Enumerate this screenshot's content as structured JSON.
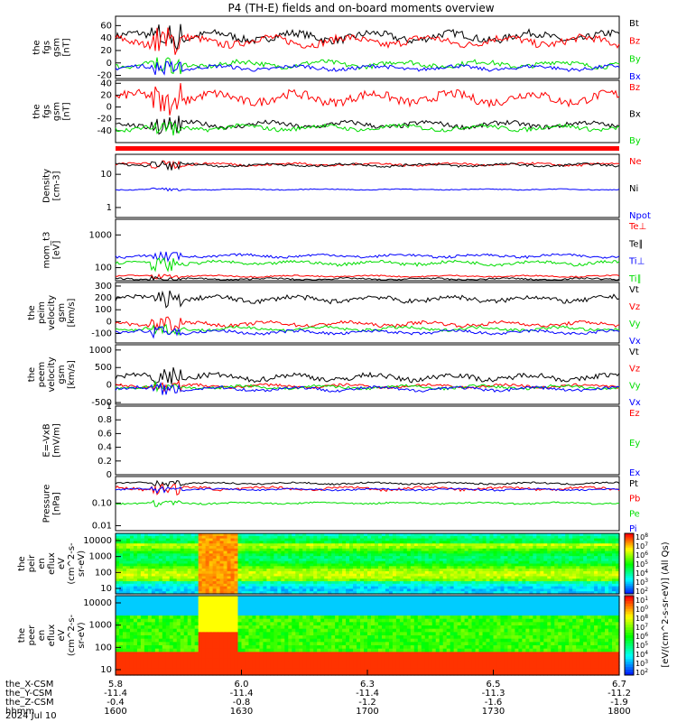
{
  "title": "P4 (TH-E) fields and on-board moments overview",
  "chart_data": {
    "type": "line",
    "panels": [
      {
        "id": "fgs_gsm",
        "ylabel": [
          "the",
          "fgs",
          "gsm",
          "[nT]"
        ],
        "ylim": [
          -25,
          75
        ],
        "yticks": [
          60,
          40,
          20,
          0,
          -20
        ],
        "series": [
          {
            "name": "Bt",
            "color": "#000000",
            "base": 42,
            "amp": 12
          },
          {
            "name": "Bz",
            "color": "#ff0000",
            "base": 35,
            "amp": 12
          },
          {
            "name": "By",
            "color": "#00dd00",
            "base": -2,
            "amp": 8
          },
          {
            "name": "Bx",
            "color": "#0000ff",
            "base": -8,
            "amp": 6
          }
        ]
      },
      {
        "id": "fgs_gsm2",
        "ylabel": [
          "the",
          "fgs",
          "gsm",
          "[nT]"
        ],
        "ylim": [
          -60,
          45
        ],
        "yticks": [
          40,
          20,
          0,
          -20,
          -40
        ],
        "series": [
          {
            "name": "Bz",
            "color": "#ff0000",
            "base": 15,
            "amp": 15
          },
          {
            "name": "Bx",
            "color": "#000000",
            "base": -30,
            "amp": 8
          },
          {
            "name": "By",
            "color": "#00dd00",
            "base": -35,
            "amp": 7
          }
        ]
      },
      {
        "id": "density",
        "ylabel": [
          "Density",
          "[cm-3]"
        ],
        "ylim": [
          0.5,
          40
        ],
        "yticks": [
          "10",
          "1"
        ],
        "ytickvals": [
          10,
          1
        ],
        "log": true,
        "series": [
          {
            "name": "Ne",
            "color": "#ff0000",
            "base": 20,
            "amp": 3
          },
          {
            "name": "Ni",
            "color": "#000000",
            "base": 19,
            "amp": 3
          },
          {
            "name": "Npot",
            "color": "#0000ff",
            "base": 3.5,
            "amp": 0.2
          }
        ]
      },
      {
        "id": "mom_t3",
        "ylabel": [
          "mom_t3",
          "[eV]"
        ],
        "ylim": [
          40,
          3000
        ],
        "yticks": [
          "1000",
          "100"
        ],
        "ytickvals": [
          1000,
          100
        ],
        "log": true,
        "series": [
          {
            "name": "Te⊥",
            "color": "#ff0000",
            "base": 55,
            "amp": 5
          },
          {
            "name": "Te∥",
            "color": "#000000",
            "base": 45,
            "amp": 5
          },
          {
            "name": "Ti⊥",
            "color": "#0000ff",
            "base": 230,
            "amp": 40
          },
          {
            "name": "Ti∥",
            "color": "#00dd00",
            "base": 140,
            "amp": 30
          }
        ]
      },
      {
        "id": "peim_velocity",
        "ylabel": [
          "the",
          "peim",
          "velocity",
          "gsm",
          "[km/s]"
        ],
        "ylim": [
          -180,
          330
        ],
        "yticks": [
          300,
          200,
          100,
          0,
          -100
        ],
        "series": [
          {
            "name": "Vt",
            "color": "#000000",
            "base": 190,
            "amp": 40
          },
          {
            "name": "Vz",
            "color": "#ff0000",
            "base": -20,
            "amp": 30
          },
          {
            "name": "Vy",
            "color": "#00dd00",
            "base": -60,
            "amp": 25
          },
          {
            "name": "Vx",
            "color": "#0000ff",
            "base": -90,
            "amp": 25
          }
        ]
      },
      {
        "id": "peem_velocity",
        "ylabel": [
          "the",
          "peem",
          "velocity",
          "gsm",
          "[km/s]"
        ],
        "ylim": [
          -550,
          1150
        ],
        "yticks": [
          1000,
          500,
          0,
          -500
        ],
        "series": [
          {
            "name": "Vt",
            "color": "#000000",
            "base": 220,
            "amp": 150
          },
          {
            "name": "Vz",
            "color": "#ff0000",
            "base": -30,
            "amp": 80
          },
          {
            "name": "Vy",
            "color": "#00dd00",
            "base": -60,
            "amp": 80
          },
          {
            "name": "Vx",
            "color": "#0000ff",
            "base": -110,
            "amp": 90
          }
        ]
      },
      {
        "id": "efield",
        "ylabel": [
          "E=-VxB",
          "[mV/m]"
        ],
        "ylim": [
          0,
          1
        ],
        "yticks": [
          1.0,
          0.8,
          0.6,
          0.4,
          0.2,
          0.0
        ],
        "series": [
          {
            "name": "Ez",
            "color": "#ff0000"
          },
          {
            "name": "Ey",
            "color": "#00dd00"
          },
          {
            "name": "Ex",
            "color": "#0000ff"
          }
        ]
      },
      {
        "id": "pressure",
        "ylabel": [
          "Pressure",
          "[nPa]"
        ],
        "ylim": [
          0.006,
          1.5
        ],
        "yticks": [
          "0.10",
          "0.01"
        ],
        "ytickvals": [
          0.1,
          0.01
        ],
        "log": true,
        "series": [
          {
            "name": "Pt",
            "color": "#000000",
            "base": 0.75,
            "amp": 0.12
          },
          {
            "name": "Pb",
            "color": "#ff0000",
            "base": 0.45,
            "amp": 0.12
          },
          {
            "name": "Pe",
            "color": "#00dd00",
            "base": 0.1,
            "amp": 0.015
          },
          {
            "name": "Pi",
            "color": "#0000ff",
            "base": 0.4,
            "amp": 0.06
          }
        ]
      },
      {
        "id": "peir_spec",
        "ylabel": [
          "the",
          "peir",
          "en",
          "eflux",
          "eV",
          "(cm^2-s-",
          "sr-eV)"
        ],
        "yticks": [
          "10000",
          "1000",
          "100",
          "10"
        ],
        "spectrogram": true
      },
      {
        "id": "peer_spec",
        "ylabel": [
          "the",
          "peer",
          "en",
          "eflux",
          "eV",
          "(cm^2-s-",
          "sr-eV)"
        ],
        "yticks": [
          "10000",
          "1000",
          "100",
          "10"
        ],
        "spectrogram": true
      }
    ],
    "colorbar": {
      "label": "[eV/(cm^2-s-sr-eV)] (All Qs)",
      "ticks": [
        "10^8",
        "10^7",
        "10^6",
        "10^5",
        "10^4",
        "10^3",
        "10^2",
        "10^1",
        "10^0",
        "10^8",
        "10^7",
        "10^6",
        "10^5",
        "10^4",
        "10^3",
        "10^2"
      ]
    },
    "xaxis": {
      "range_minutes": [
        960,
        1080
      ],
      "rows": [
        {
          "label": "the_X-CSM",
          "values": [
            "5.8",
            "6.0",
            "6.3",
            "6.5",
            "6.7"
          ]
        },
        {
          "label": "the_Y-CSM",
          "values": [
            "-11.4",
            "-11.4",
            "-11.4",
            "-11.3",
            "-11.2"
          ]
        },
        {
          "label": "the_Z-CSM",
          "values": [
            "-0.4",
            "-0.8",
            "-1.2",
            "-1.6",
            "-1.9"
          ]
        },
        {
          "label": "hhmm",
          "values": [
            "1600",
            "1630",
            "1700",
            "1730",
            "1800"
          ]
        }
      ],
      "date": "2024 Jul 10"
    }
  }
}
